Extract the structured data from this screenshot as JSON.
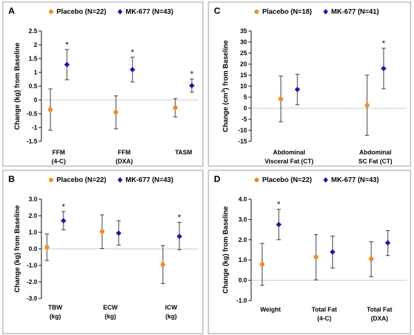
{
  "chart_data": [
    {
      "type": "scatter",
      "panel": "A",
      "ylabel": "Change (kg) from Baseline",
      "ylim": [
        -1.5,
        2.5
      ],
      "yticks": [
        -1.5,
        -1,
        -0.5,
        0,
        0.5,
        1,
        1.5,
        2,
        2.5
      ],
      "ytick_labels": [
        "-1.5",
        "-1",
        "-0.5",
        "0",
        "0.5",
        "1",
        "1.5",
        "2",
        "2.5"
      ],
      "categories": [
        [
          "FFM",
          "(4-C)"
        ],
        [
          "FFM",
          "(DXA)"
        ],
        [
          "TASM",
          ""
        ]
      ],
      "series": [
        {
          "name": "Placebo (N=22)",
          "color": "#f28c28",
          "marker": "circle",
          "values": [
            -0.35,
            -0.45,
            -0.28
          ],
          "lower": [
            -1.1,
            -1.05,
            -0.62
          ],
          "upper": [
            0.4,
            0.15,
            0.05
          ]
        },
        {
          "name": "MK-677 (N=43)",
          "color": "#1a1aa6",
          "marker": "diamond",
          "values": [
            1.28,
            1.1,
            0.52
          ],
          "lower": [
            0.73,
            0.65,
            0.28
          ],
          "upper": [
            1.83,
            1.55,
            0.76
          ]
        }
      ],
      "significance": [
        true,
        true,
        true
      ],
      "legend": "top"
    },
    {
      "type": "scatter",
      "panel": "C",
      "ylabel_prefix": "Change (cm",
      "ylabel_sup": "3",
      "ylabel_suffix": ") from Baseline",
      "ylim": [
        -15,
        35
      ],
      "yticks": [
        -15,
        -10,
        -5,
        0,
        5,
        10,
        15,
        20,
        25,
        30,
        35
      ],
      "ytick_labels": [
        "-15",
        "-10",
        "-5",
        "0",
        "5",
        "10",
        "15",
        "20",
        "25",
        "30",
        "35"
      ],
      "categories": [
        [
          "Abdominal",
          "Visceral Fat (CT)"
        ],
        [
          "Abdominal",
          "SC Fat (CT)"
        ]
      ],
      "series": [
        {
          "name": "Placebo (N=18)",
          "color": "#f28c28",
          "marker": "circle",
          "values": [
            4.2,
            1.3
          ],
          "lower": [
            -6.2,
            -12.3
          ],
          "upper": [
            14.6,
            15.0
          ]
        },
        {
          "name": "MK-677 (N=41)",
          "color": "#1a1aa6",
          "marker": "diamond",
          "values": [
            8.5,
            18.0
          ],
          "lower": [
            1.6,
            8.8
          ],
          "upper": [
            15.4,
            27.2
          ]
        }
      ],
      "significance": [
        false,
        true
      ],
      "legend": "top"
    },
    {
      "type": "scatter",
      "panel": "B",
      "ylabel": "Change (kg) from Baseline",
      "ylim": [
        -3.0,
        3.0
      ],
      "yticks": [
        -3,
        -2,
        -1,
        0,
        1,
        2,
        3
      ],
      "ytick_labels": [
        "-3.0",
        "-2.0",
        "-1.0",
        "0.0",
        "1.0",
        "2.0",
        "3.0"
      ],
      "categories": [
        [
          "TBW",
          "(kg)"
        ],
        [
          "ECW",
          "(kg)"
        ],
        [
          "ICW",
          "(kg)"
        ]
      ],
      "series": [
        {
          "name": "Placebo (N=22)",
          "color": "#f28c28",
          "marker": "circle",
          "values": [
            0.1,
            1.05,
            -0.95
          ],
          "lower": [
            -0.7,
            0.02,
            -2.1
          ],
          "upper": [
            0.9,
            2.05,
            0.2
          ]
        },
        {
          "name": "MK-677 (N=43)",
          "color": "#1a1aa6",
          "marker": "diamond",
          "values": [
            1.7,
            0.95,
            0.75
          ],
          "lower": [
            1.15,
            0.22,
            -0.05
          ],
          "upper": [
            2.25,
            1.7,
            1.6
          ]
        }
      ],
      "significance": [
        true,
        false,
        true
      ],
      "legend": "top"
    },
    {
      "type": "scatter",
      "panel": "D",
      "ylabel": "Change (kg) from Baseline",
      "ylim": [
        -1.0,
        4.0
      ],
      "yticks": [
        -1,
        0,
        1,
        2,
        3,
        4
      ],
      "ytick_labels": [
        "-1.0",
        "0.0",
        "1.0",
        "2.0",
        "3.0",
        "4.0"
      ],
      "categories": [
        [
          "Weight",
          ""
        ],
        [
          "Total Fat",
          "(4-C)"
        ],
        [
          "Total Fat",
          "(DXA)"
        ]
      ],
      "series": [
        {
          "name": "Placebo (N=22)",
          "color": "#f28c28",
          "marker": "circle",
          "values": [
            0.78,
            1.15,
            1.05
          ],
          "lower": [
            -0.25,
            0.02,
            0.18
          ],
          "upper": [
            1.82,
            2.25,
            1.9
          ]
        },
        {
          "name": "MK-677 (N=43)",
          "color": "#1a1aa6",
          "marker": "diamond",
          "values": [
            2.75,
            1.4,
            1.85
          ],
          "lower": [
            2.0,
            0.6,
            1.22
          ],
          "upper": [
            3.5,
            2.18,
            2.45
          ]
        }
      ],
      "significance": [
        true,
        false,
        false
      ],
      "legend": "top"
    }
  ]
}
